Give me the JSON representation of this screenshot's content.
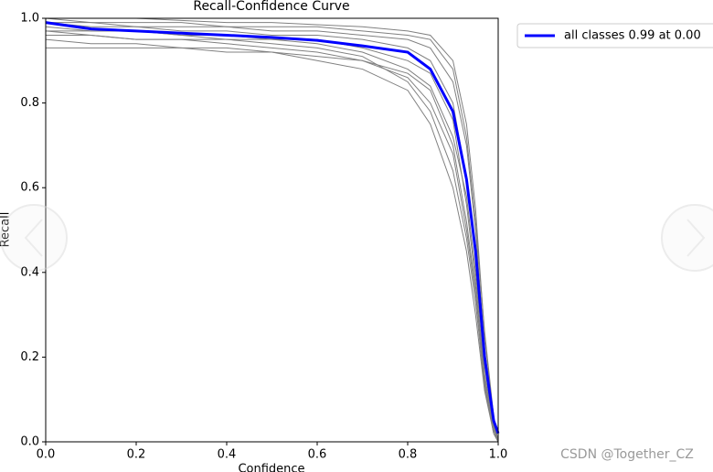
{
  "chart_data": {
    "type": "line",
    "title": "Recall-Confidence Curve",
    "xlabel": "Confidence",
    "ylabel": "Recall",
    "x": [
      0,
      0.1,
      0.2,
      0.3,
      0.4,
      0.5,
      0.6,
      0.7,
      0.8,
      0.85,
      0.9,
      0.93,
      0.95,
      0.97,
      0.99,
      1.0
    ],
    "series": [
      {
        "name": "all classes 0.99 at 0.00",
        "color": "#0000ff",
        "values": [
          0.99,
          0.975,
          0.97,
          0.965,
          0.96,
          0.955,
          0.948,
          0.935,
          0.92,
          0.88,
          0.78,
          0.62,
          0.45,
          0.2,
          0.05,
          0.02
        ]
      },
      {
        "color": "#808080",
        "values": [
          1.0,
          1.0,
          1.0,
          0.995,
          0.99,
          0.99,
          0.985,
          0.98,
          0.97,
          0.96,
          0.9,
          0.75,
          0.55,
          0.25,
          0.05,
          0.0
        ]
      },
      {
        "color": "#808080",
        "values": [
          0.97,
          0.96,
          0.95,
          0.95,
          0.94,
          0.93,
          0.92,
          0.9,
          0.86,
          0.8,
          0.68,
          0.5,
          0.35,
          0.15,
          0.03,
          0.0
        ]
      },
      {
        "color": "#808080",
        "values": [
          0.95,
          0.94,
          0.94,
          0.93,
          0.93,
          0.92,
          0.9,
          0.88,
          0.83,
          0.75,
          0.6,
          0.45,
          0.3,
          0.12,
          0.02,
          0.0
        ]
      },
      {
        "color": "#808080",
        "values": [
          0.99,
          0.99,
          0.98,
          0.98,
          0.98,
          0.97,
          0.97,
          0.96,
          0.95,
          0.93,
          0.85,
          0.7,
          0.5,
          0.22,
          0.04,
          0.0
        ]
      },
      {
        "color": "#808080",
        "values": [
          0.98,
          0.97,
          0.97,
          0.96,
          0.96,
          0.95,
          0.94,
          0.92,
          0.88,
          0.84,
          0.72,
          0.58,
          0.4,
          0.18,
          0.03,
          0.0
        ]
      },
      {
        "color": "#808080",
        "values": [
          0.93,
          0.93,
          0.93,
          0.93,
          0.92,
          0.92,
          0.91,
          0.9,
          0.87,
          0.83,
          0.7,
          0.52,
          0.36,
          0.14,
          0.02,
          0.0
        ]
      },
      {
        "color": "#808080",
        "values": [
          1.0,
          0.99,
          0.99,
          0.99,
          0.98,
          0.98,
          0.98,
          0.97,
          0.96,
          0.95,
          0.88,
          0.72,
          0.52,
          0.26,
          0.06,
          0.0
        ]
      },
      {
        "color": "#808080",
        "values": [
          0.96,
          0.96,
          0.95,
          0.95,
          0.95,
          0.94,
          0.93,
          0.91,
          0.85,
          0.78,
          0.64,
          0.48,
          0.33,
          0.13,
          0.02,
          0.0
        ]
      },
      {
        "color": "#808080",
        "values": [
          0.99,
          0.98,
          0.98,
          0.97,
          0.97,
          0.96,
          0.96,
          0.95,
          0.93,
          0.9,
          0.8,
          0.62,
          0.46,
          0.2,
          0.04,
          0.0
        ]
      },
      {
        "color": "#808080",
        "values": [
          0.97,
          0.97,
          0.97,
          0.96,
          0.95,
          0.95,
          0.95,
          0.93,
          0.9,
          0.87,
          0.76,
          0.56,
          0.38,
          0.16,
          0.03,
          0.0
        ]
      }
    ],
    "xlim": [
      0,
      1
    ],
    "ylim": [
      0,
      1
    ],
    "xticks": [
      {
        "value": 0,
        "label": "0.0"
      },
      {
        "value": 0.2,
        "label": "0.2"
      },
      {
        "value": 0.4,
        "label": "0.4"
      },
      {
        "value": 0.6,
        "label": "0.6"
      },
      {
        "value": 0.8,
        "label": "0.8"
      },
      {
        "value": 1,
        "label": "1.0"
      }
    ],
    "yticks": [
      {
        "value": 0,
        "label": "0.0"
      },
      {
        "value": 0.2,
        "label": "0.2"
      },
      {
        "value": 0.4,
        "label": "0.4"
      },
      {
        "value": 0.6,
        "label": "0.6"
      },
      {
        "value": 0.8,
        "label": "0.8"
      },
      {
        "value": 1,
        "label": "1.0"
      }
    ],
    "legend": "upper right outside",
    "grid": false
  },
  "watermark": "CSDN @Together_CZ"
}
